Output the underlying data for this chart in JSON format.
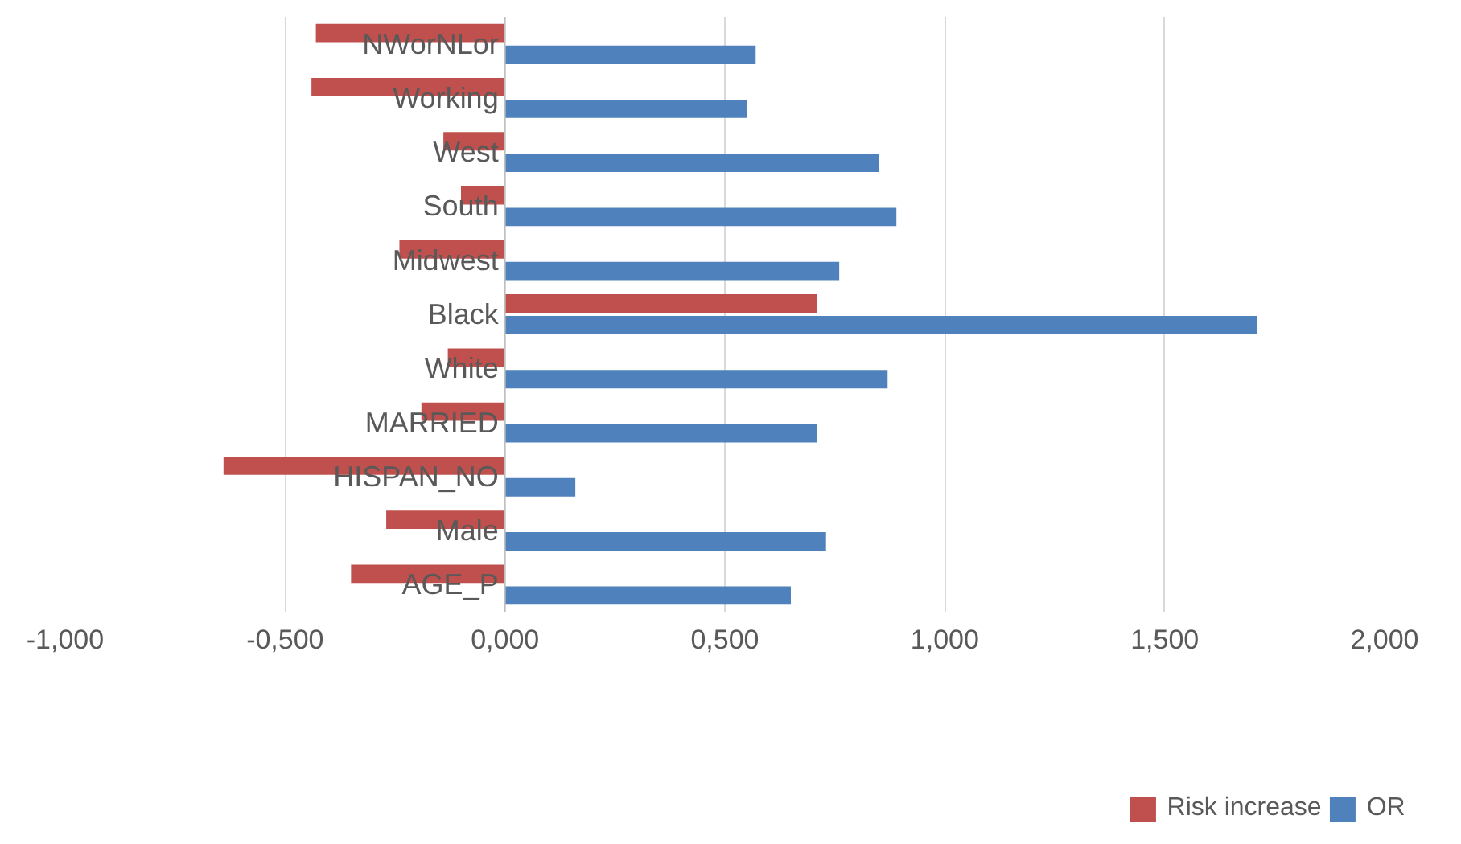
{
  "chart_data": {
    "type": "bar",
    "orientation": "horizontal",
    "categories": [
      "NWorNLor",
      "Working",
      "West",
      "South",
      "Midwest",
      "Black",
      "White",
      "MARRIED",
      "HISPAN_NO",
      "Male",
      "AGE_P"
    ],
    "series": [
      {
        "name": "Risk increase",
        "color": "#c0504d",
        "values": [
          -0.43,
          -0.44,
          -0.14,
          -0.1,
          -0.24,
          0.71,
          -0.13,
          -0.19,
          -0.64,
          -0.27,
          -0.35
        ]
      },
      {
        "name": "OR",
        "color": "#4f81bd",
        "values": [
          0.57,
          0.55,
          0.85,
          0.89,
          0.76,
          1.71,
          0.87,
          0.71,
          0.16,
          0.73,
          0.65
        ]
      }
    ],
    "xlim": [
      -1,
      2
    ],
    "xticks": [
      {
        "value": -1,
        "label": "-1,000"
      },
      {
        "value": -0.5,
        "label": "-0,500"
      },
      {
        "value": 0,
        "label": "0,000"
      },
      {
        "value": 0.5,
        "label": "0,500"
      },
      {
        "value": 1,
        "label": "1,000"
      },
      {
        "value": 1.5,
        "label": "1,500"
      },
      {
        "value": 2,
        "label": "2,000"
      }
    ],
    "grid": "x",
    "legend": "bottom"
  }
}
